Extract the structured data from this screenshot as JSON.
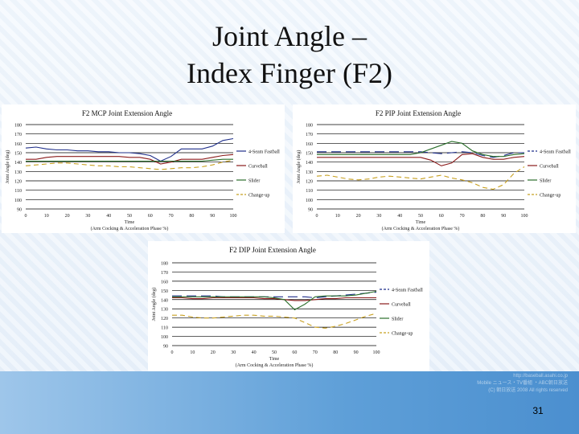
{
  "slide": {
    "title_line1": "Joint Angle –",
    "title_line2": "Index Finger (F2)",
    "page_number": "31",
    "footer_lines": [
      "http://baseball.asahi.co.jp",
      "Mobile ニュース・TV番組 ・ABC朝日放送",
      "(C) 朝日放送 2008 All rights reserved"
    ]
  },
  "chart_data": [
    {
      "type": "line",
      "title": "F2 MCP Joint Extension Angle",
      "ylabel": "Joint Angle (deg)",
      "xlabel": "Time",
      "xlabel2": "(Arm Cocking & Acceleration Phase %)",
      "ylim": [
        90,
        180
      ],
      "yticks": [
        90,
        100,
        110,
        120,
        130,
        140,
        150,
        160,
        170,
        180
      ],
      "xlim": [
        0,
        100
      ],
      "xticks": [
        0,
        10,
        20,
        30,
        40,
        50,
        60,
        70,
        80,
        90,
        100
      ],
      "grid": true,
      "legend_position": "right",
      "x": [
        0,
        5,
        10,
        15,
        20,
        25,
        30,
        35,
        40,
        45,
        50,
        55,
        60,
        65,
        70,
        75,
        80,
        85,
        90,
        95,
        100
      ],
      "series": [
        {
          "name": "4-Seam Fastball",
          "color": "#1f2f8a",
          "dash": "solid",
          "values": [
            155,
            156,
            154,
            153,
            153,
            152,
            152,
            151,
            151,
            150,
            150,
            149,
            147,
            141,
            146,
            154,
            154,
            154,
            157,
            163,
            165
          ]
        },
        {
          "name": "Curveball",
          "color": "#8a1a1a",
          "dash": "solid",
          "values": [
            143,
            143,
            145,
            146,
            146,
            146,
            146,
            146,
            146,
            146,
            145,
            145,
            143,
            138,
            140,
            143,
            143,
            143,
            145,
            147,
            148
          ]
        },
        {
          "name": "Slider",
          "color": "#2a6e2a",
          "dash": "solid",
          "values": [
            141,
            141,
            141,
            141,
            141,
            141,
            141,
            141,
            141,
            141,
            141,
            141,
            141,
            141,
            141,
            141,
            141,
            141,
            142,
            143,
            143
          ]
        },
        {
          "name": "Change-up",
          "color": "#c8a020",
          "dash": "6,4",
          "values": [
            136,
            137,
            138,
            139,
            139,
            138,
            137,
            136,
            136,
            135,
            135,
            134,
            133,
            132,
            133,
            134,
            134,
            135,
            137,
            140,
            142
          ]
        }
      ]
    },
    {
      "type": "line",
      "title": "F2 PIP Joint Extension Angle",
      "ylabel": "Joint Angle (deg)",
      "xlabel": "Time",
      "xlabel2": "(Arm Cocking & Acceleration Phase %)",
      "ylim": [
        90,
        180
      ],
      "yticks": [
        90,
        100,
        110,
        120,
        130,
        140,
        150,
        160,
        170,
        180
      ],
      "xlim": [
        0,
        100
      ],
      "xticks": [
        0,
        10,
        20,
        30,
        40,
        50,
        60,
        70,
        80,
        90,
        100
      ],
      "grid": true,
      "legend_position": "right",
      "x": [
        0,
        5,
        10,
        15,
        20,
        25,
        30,
        35,
        40,
        45,
        50,
        55,
        60,
        65,
        70,
        75,
        80,
        85,
        90,
        95,
        100
      ],
      "series": [
        {
          "name": "4-Seam Fastball",
          "color": "#1f2f8a",
          "dash": "12,6",
          "values": [
            151,
            151,
            151,
            151,
            151,
            151,
            151,
            151,
            151,
            151,
            151,
            150,
            149,
            150,
            151,
            150,
            147,
            145,
            147,
            150,
            150
          ]
        },
        {
          "name": "Curveball",
          "color": "#8a1a1a",
          "dash": "solid",
          "values": [
            145,
            145,
            145,
            145,
            145,
            145,
            145,
            145,
            145,
            145,
            145,
            142,
            136,
            139,
            148,
            149,
            145,
            143,
            143,
            145,
            146
          ]
        },
        {
          "name": "Slider",
          "color": "#2a6e2a",
          "dash": "solid",
          "values": [
            148,
            148,
            148,
            148,
            148,
            148,
            148,
            148,
            148,
            148,
            150,
            154,
            158,
            162,
            160,
            152,
            148,
            146,
            146,
            148,
            149
          ]
        },
        {
          "name": "Change-up",
          "color": "#c8a020",
          "dash": "6,4",
          "values": [
            125,
            126,
            124,
            122,
            121,
            122,
            124,
            125,
            124,
            123,
            122,
            124,
            126,
            123,
            121,
            118,
            113,
            111,
            116,
            128,
            135
          ]
        }
      ]
    },
    {
      "type": "line",
      "title": "F2 DIP Joint Extension Angle",
      "ylabel": "Joint Angle (deg)",
      "xlabel": "Time",
      "xlabel2": "(Arm Cocking & Acceleration Phase %)",
      "ylim": [
        90,
        180
      ],
      "yticks": [
        90,
        100,
        110,
        120,
        130,
        140,
        150,
        160,
        170,
        180
      ],
      "xlim": [
        0,
        100
      ],
      "xticks": [
        0,
        10,
        20,
        30,
        40,
        50,
        60,
        70,
        80,
        90,
        100
      ],
      "grid": true,
      "legend_position": "right",
      "x": [
        0,
        5,
        10,
        15,
        20,
        25,
        30,
        35,
        40,
        45,
        50,
        55,
        60,
        65,
        70,
        75,
        80,
        85,
        90,
        95,
        100
      ],
      "series": [
        {
          "name": "4-Seam Fastball",
          "color": "#1f2f8a",
          "dash": "12,6",
          "values": [
            144,
            144,
            144,
            144,
            144,
            143,
            143,
            143,
            143,
            143,
            143,
            143,
            143,
            143,
            142,
            143,
            144,
            145,
            146,
            147,
            148
          ]
        },
        {
          "name": "Curveball",
          "color": "#8a1a1a",
          "dash": "solid",
          "values": [
            142,
            142,
            141,
            141,
            142,
            142,
            142,
            142,
            142,
            141,
            141,
            140,
            139,
            139,
            140,
            141,
            141,
            142,
            142,
            142,
            142
          ]
        },
        {
          "name": "Slider",
          "color": "#2a6e2a",
          "dash": "solid",
          "values": [
            143,
            143,
            143,
            143,
            143,
            143,
            143,
            143,
            143,
            143,
            142,
            140,
            129,
            135,
            143,
            144,
            144,
            144,
            145,
            147,
            149
          ]
        },
        {
          "name": "Change-up",
          "color": "#c8a020",
          "dash": "6,4",
          "values": [
            123,
            123,
            121,
            120,
            120,
            121,
            122,
            123,
            123,
            122,
            122,
            121,
            120,
            115,
            110,
            109,
            111,
            114,
            118,
            122,
            125
          ]
        }
      ]
    }
  ]
}
